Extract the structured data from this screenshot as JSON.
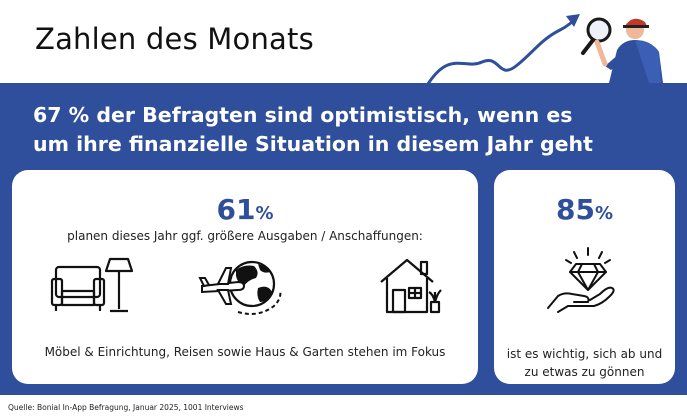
{
  "header": {
    "title": "Zahlen des Monats"
  },
  "headline": {
    "line1": "67 % der Befragten sind optimistisch, wenn es",
    "line2": "um ihre finanzielle Situation in diesem Jahr geht"
  },
  "left_card": {
    "value": "61",
    "unit": "%",
    "subtitle": "planen dieses Jahr ggf. größere Ausgaben / Anschaffungen:",
    "icons": [
      "armchair-lamp-icon",
      "globe-airplane-icon",
      "house-plant-icon"
    ],
    "footer": "Möbel & Einrichtung, Reisen sowie Haus & Garten stehen im Fokus"
  },
  "right_card": {
    "value": "85",
    "unit": "%",
    "icon": "diamond-hand-icon",
    "footer_line1": "ist es wichtig, sich ab und",
    "footer_line2": "zu etwas zu gönnen"
  },
  "source": "Quelle: Bonial In-App Befragung, Januar 2025, 1001 Interviews",
  "colors": {
    "brand_blue": "#2f4f9c",
    "background": "#ffffff",
    "text": "#222222"
  }
}
